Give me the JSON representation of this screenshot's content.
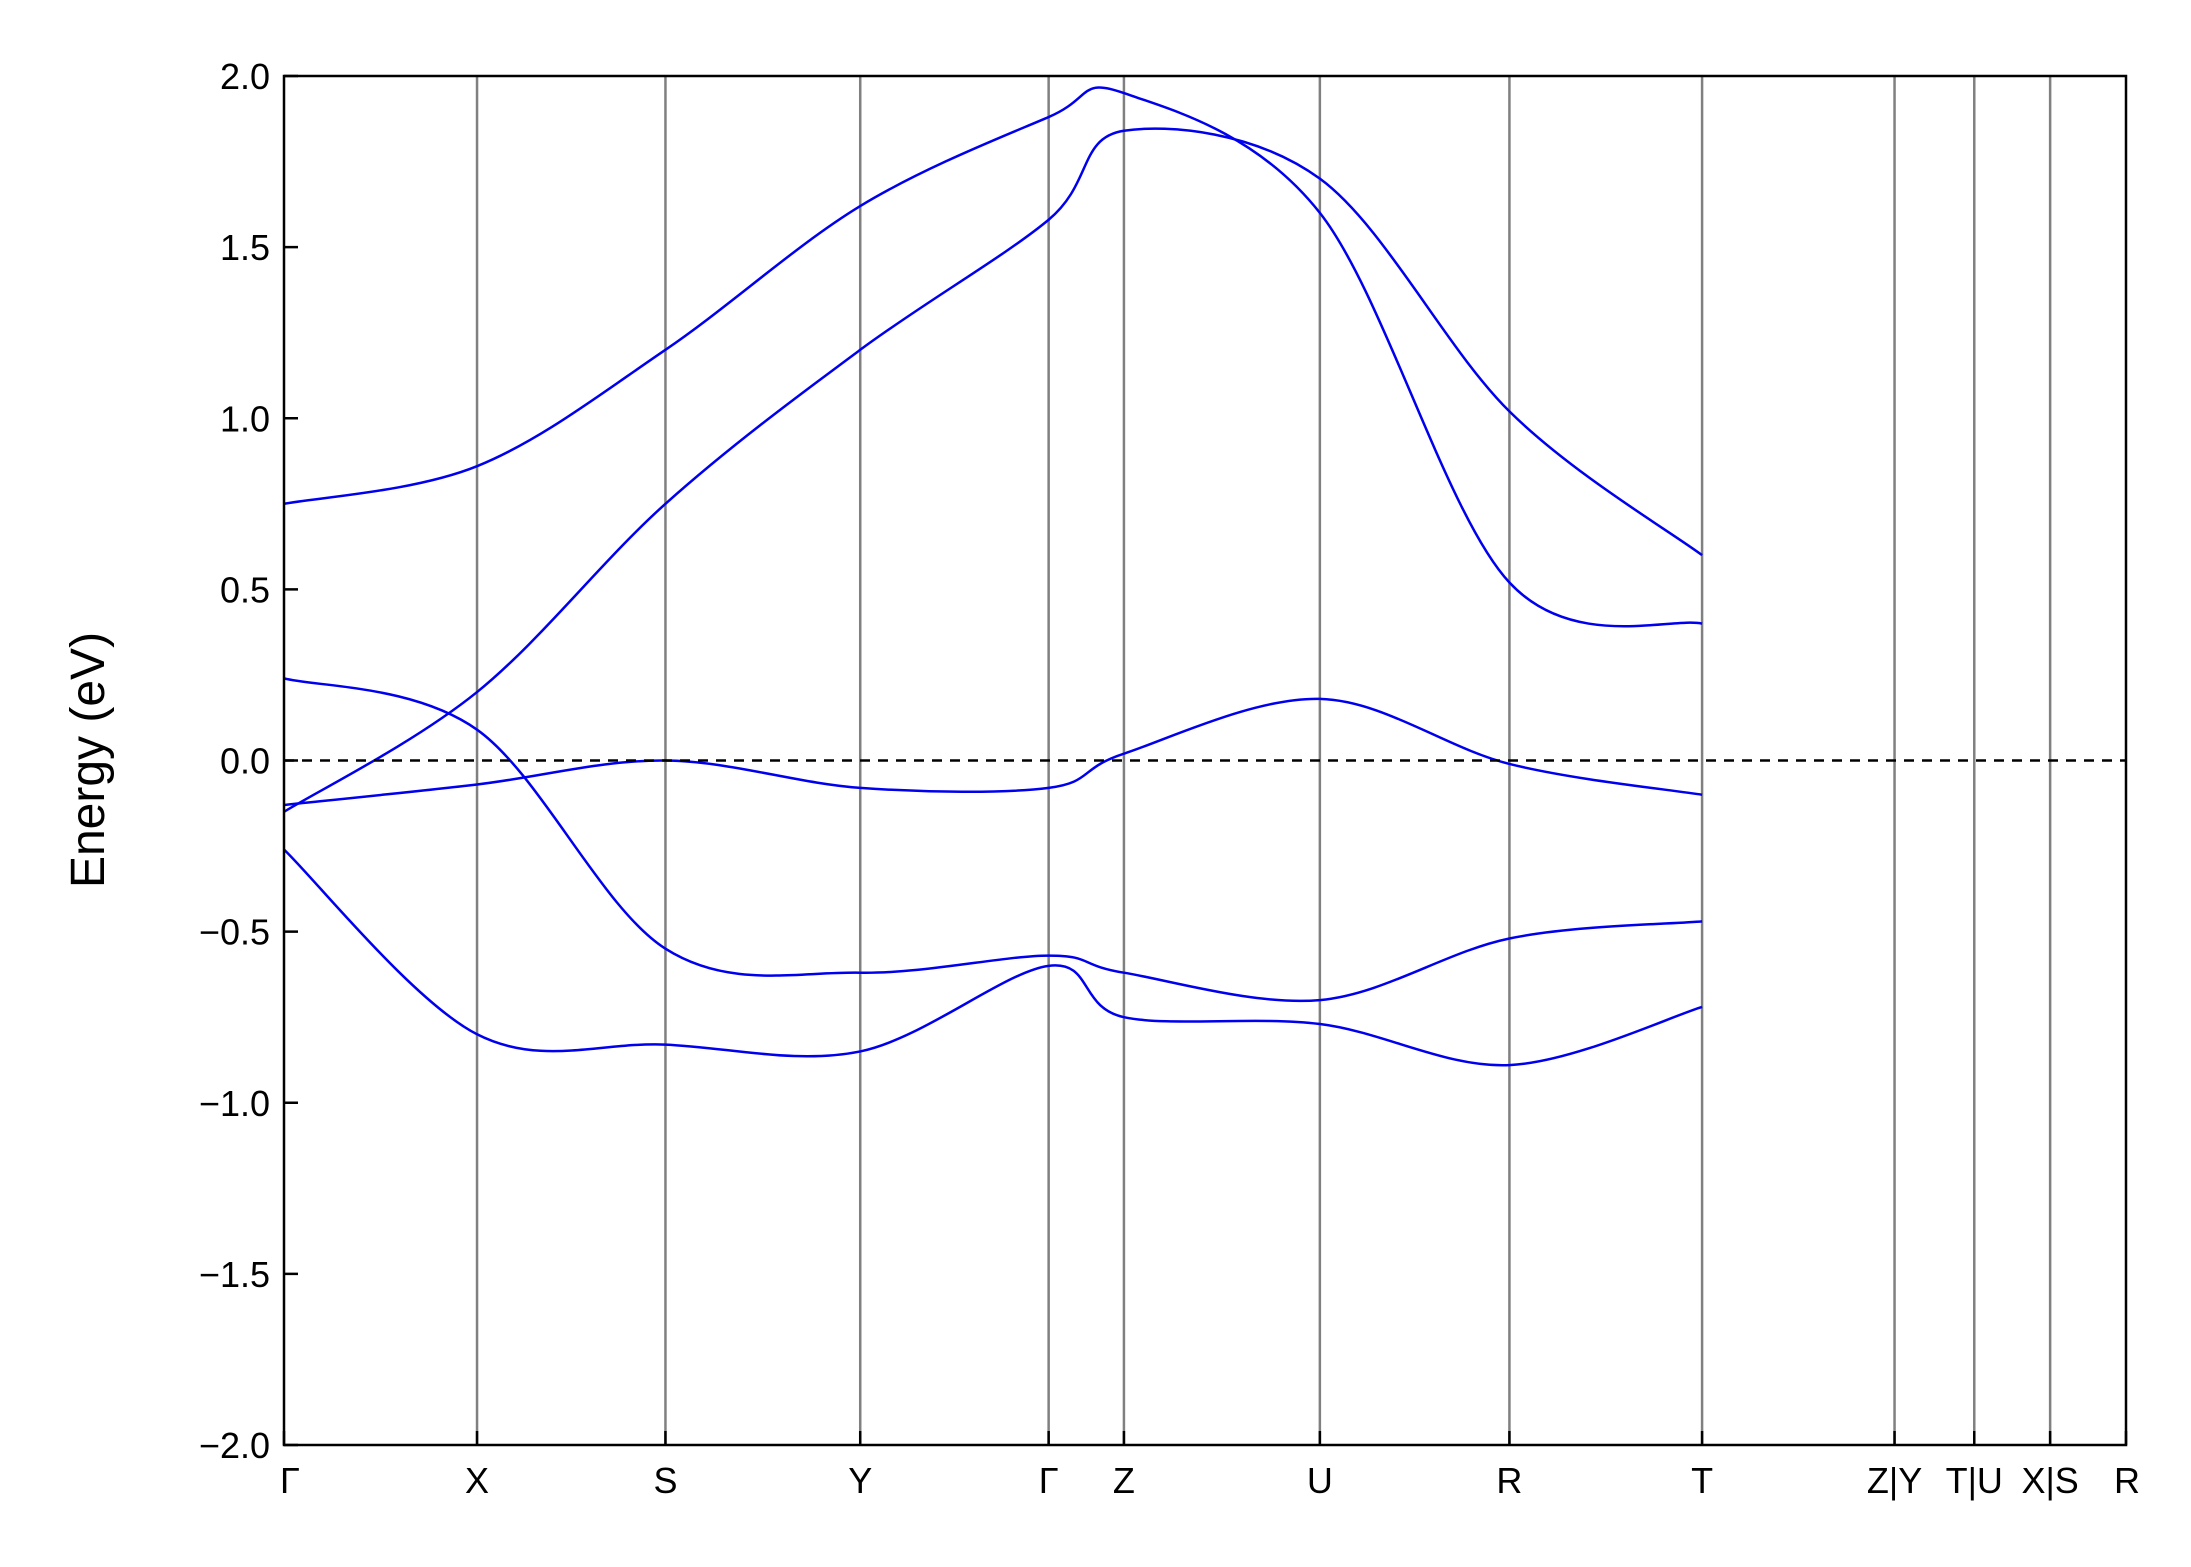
{
  "chart_data": {
    "type": "line",
    "title": "",
    "xlabel": "",
    "ylabel": "Energy (eV)",
    "ylim": [
      -2.0,
      2.0
    ],
    "yticks": [
      -2.0,
      -1.5,
      -1.0,
      -0.5,
      0.0,
      0.5,
      1.0,
      1.5,
      2.0
    ],
    "ytick_labels": [
      "−2.0",
      "−1.5",
      "−1.0",
      "−0.5",
      "0.0",
      "0.5",
      "1.0",
      "1.5",
      "2.0"
    ],
    "grid": false,
    "legend": "none",
    "line_color": "#0000ee",
    "fermi_level": 0.0,
    "kpoint_labels": [
      "Γ",
      "X",
      "S",
      "Y",
      "Γ",
      "Z",
      "U",
      "R",
      "T",
      "Z|Y",
      "T|U",
      "X|S",
      "R"
    ],
    "kpoint_positions": [
      0.0,
      1.0,
      1.976,
      2.985,
      3.961,
      4.351,
      5.366,
      6.348,
      7.346,
      8.343,
      8.756,
      9.149,
      9.542
    ],
    "series": [
      {
        "values": [
          -0.13,
          -0.07,
          0.0,
          -0.08,
          -0.08,
          0.02,
          0.18,
          -0.01,
          -0.1
        ]
      },
      {
        "values": [
          0.24,
          0.09,
          -0.55,
          -0.62,
          -0.57,
          -0.62,
          -0.7,
          -0.52,
          -0.47
        ]
      },
      {
        "values": [
          -0.26,
          -0.8,
          -0.83,
          -0.85,
          -0.6,
          -0.75,
          -0.77,
          -0.89,
          -0.72
        ]
      },
      {
        "values": [
          0.75,
          0.86,
          1.2,
          1.62,
          1.88,
          1.95,
          1.6,
          0.52,
          0.4
        ]
      },
      {
        "values": [
          -0.15,
          0.2,
          0.75,
          1.2,
          1.58,
          1.84,
          1.7,
          1.02,
          0.6
        ]
      }
    ]
  }
}
